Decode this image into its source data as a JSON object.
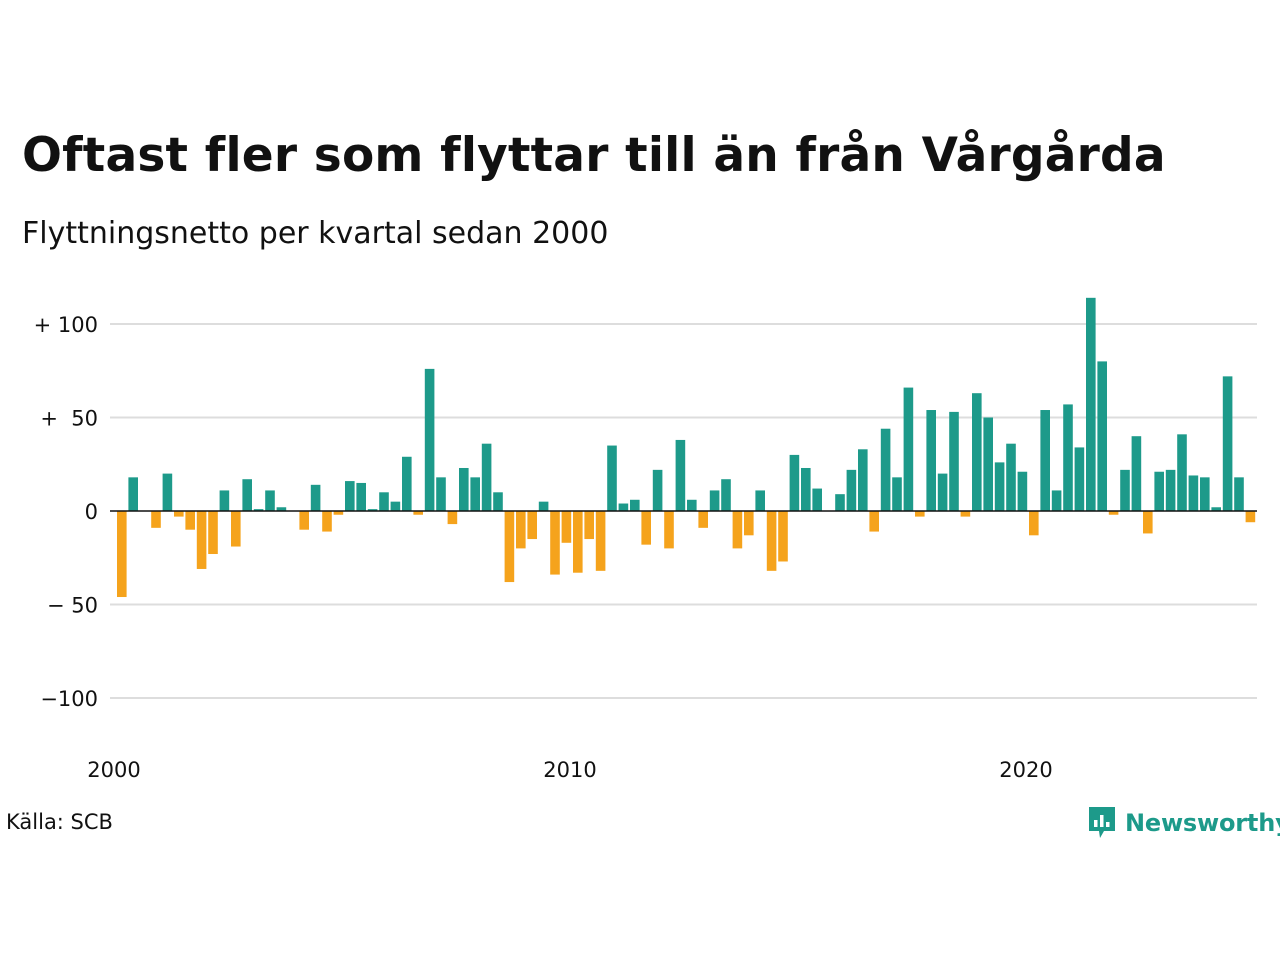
{
  "title": "Oftast fler som flyttar till än från Vårgårda",
  "subtitle": "Flyttningsnetto per kvartal sedan 2000",
  "source": "Källa: SCB",
  "brand": "Newsworthy",
  "colors": {
    "positive": "#1d9a8a",
    "negative": "#f5a31c",
    "grid": "#dddddd",
    "baseline": "#111111",
    "brand": "#1d9a8a"
  },
  "chart_data": {
    "type": "bar",
    "title": "Oftast fler som flyttar till än från Vårgårda",
    "subtitle": "Flyttningsnetto per kvartal sedan 2000",
    "xlabel": "",
    "ylabel": "",
    "x_start": "2000 Q1",
    "x_ticks": [
      "2000",
      "2010",
      "2020"
    ],
    "y_ticks": [
      {
        "value": 100,
        "label": "+ 100"
      },
      {
        "value": 50,
        "label": "+  50"
      },
      {
        "value": 0,
        "label": "0"
      },
      {
        "value": -50,
        "label": "− 50"
      },
      {
        "value": -100,
        "label": "−100"
      }
    ],
    "ylim": [
      -100,
      115
    ],
    "grid": true,
    "values": [
      -46,
      18,
      0,
      -9,
      20,
      -3,
      -10,
      -31,
      -23,
      11,
      -19,
      17,
      1,
      11,
      2,
      0,
      -10,
      14,
      -11,
      -2,
      16,
      15,
      1,
      10,
      5,
      29,
      -2,
      76,
      18,
      -7,
      23,
      18,
      36,
      10,
      -38,
      -20,
      -15,
      5,
      -34,
      -17,
      -33,
      -15,
      -32,
      35,
      4,
      6,
      -18,
      22,
      -20,
      38,
      6,
      -9,
      11,
      17,
      -20,
      -13,
      11,
      -32,
      -27,
      30,
      23,
      12,
      0,
      9,
      22,
      33,
      -11,
      44,
      18,
      66,
      -3,
      54,
      20,
      53,
      -3,
      63,
      50,
      26,
      36,
      21,
      -13,
      54,
      11,
      57,
      34,
      114,
      80,
      -2,
      22,
      40,
      -12,
      21,
      22,
      41,
      19,
      18,
      2,
      72,
      18,
      -6
    ]
  }
}
